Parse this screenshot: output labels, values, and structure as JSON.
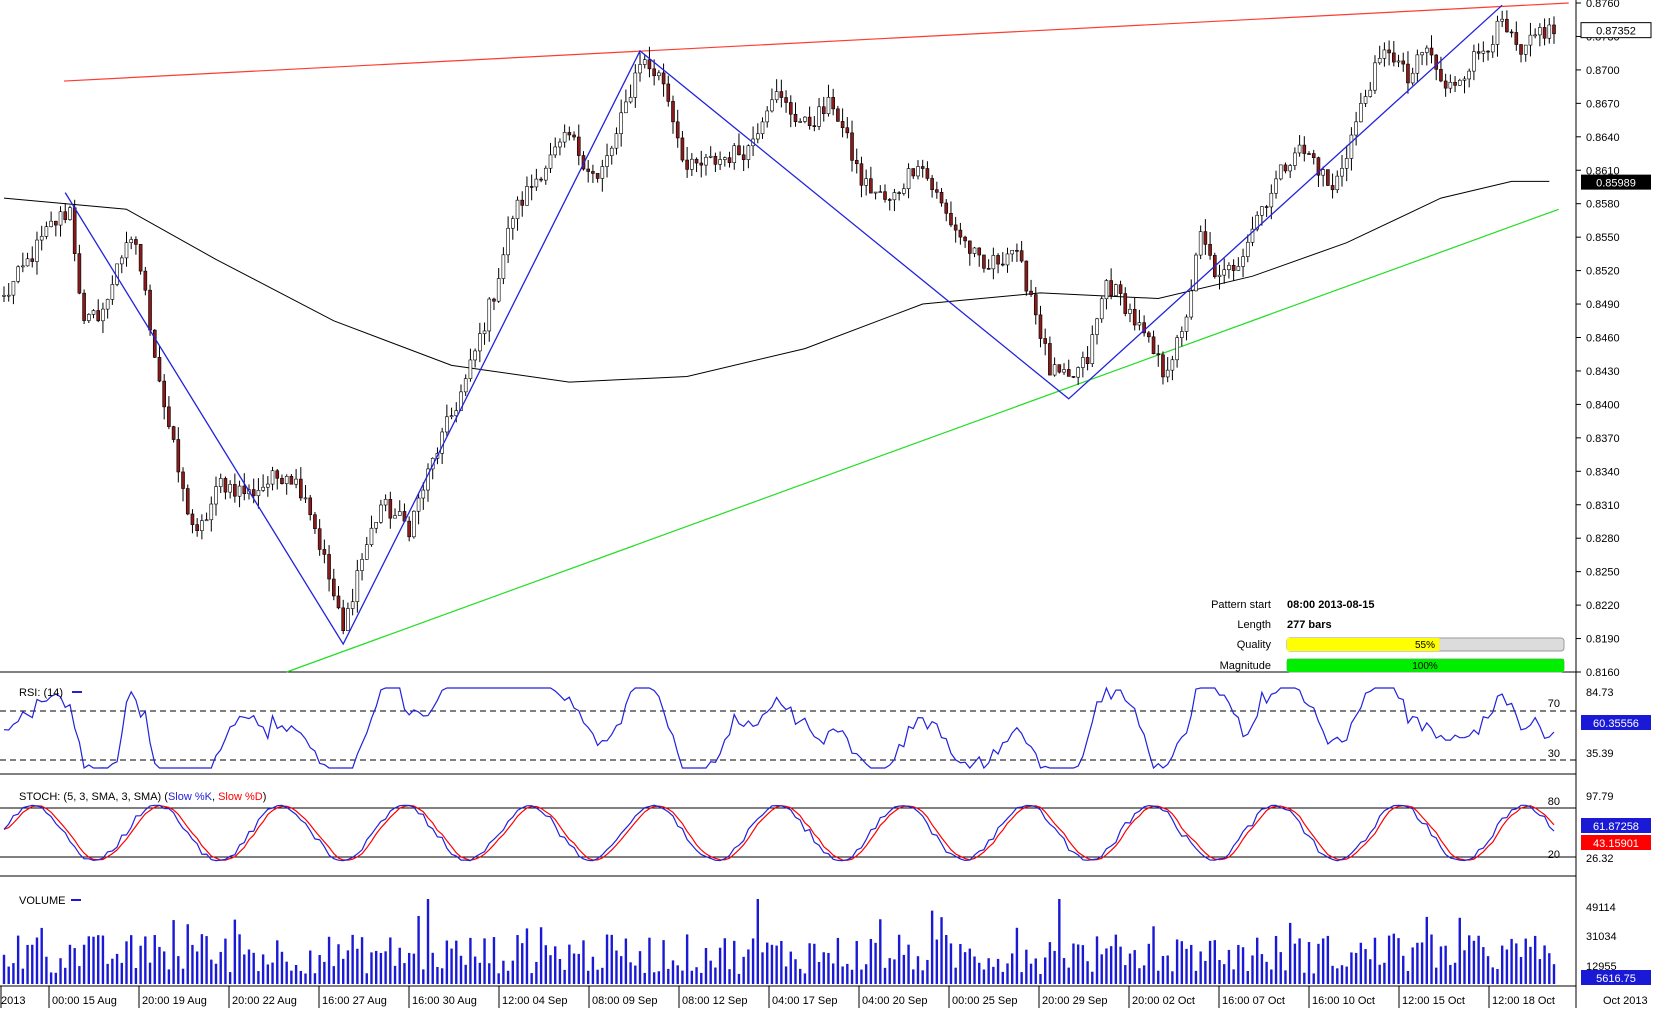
{
  "colors": {
    "bull_candle": "#ffffff",
    "bear_candle": "#8b1a1a",
    "wick": "#000000",
    "resistance": "#ff3b30",
    "support": "#22dd22",
    "pattern_line": "#2222dd",
    "ma": "#000000",
    "rsi": "#2222dd",
    "stoch_k": "#2222dd",
    "stoch_d": "#ff0000",
    "volume": "#1a1ad6",
    "badge_black": "#000000",
    "badge_blue": "#1a1ad6",
    "badge_red": "#ff0000",
    "quality_fill": "#ffff00",
    "magnitude_fill": "#00ee00"
  },
  "price_axis": {
    "ticks": [
      "0.8760",
      "0.8730",
      "0.8700",
      "0.8670",
      "0.8640",
      "0.8610",
      "0.8580",
      "0.8550",
      "0.8520",
      "0.8490",
      "0.8460",
      "0.8430",
      "0.8400",
      "0.8370",
      "0.8340",
      "0.8310",
      "0.8280",
      "0.8250",
      "0.8220",
      "0.8190",
      "0.8160"
    ],
    "last_price": "0.87352",
    "ma_value": "0.85989"
  },
  "time_axis": {
    "labels": [
      "2013",
      "00:00 15 Aug",
      "20:00 19 Aug",
      "20:00 22 Aug",
      "16:00 27 Aug",
      "16:00 30 Aug",
      "12:00 04 Sep",
      "08:00 09 Sep",
      "08:00 12 Sep",
      "04:00 17 Sep",
      "04:00 20 Sep",
      "00:00 25 Sep",
      "20:00 29 Sep",
      "20:00 02 Oct",
      "16:00 07 Oct",
      "16:00 10 Oct",
      "12:00 15 Oct",
      "12:00 18 Oct"
    ],
    "right_label": "Oct 2013"
  },
  "pattern_info": {
    "start_label": "Pattern start",
    "start_value": "08:00 2013-08-15",
    "length_label": "Length",
    "length_value": "277 bars",
    "quality_label": "Quality",
    "quality_value": "55%",
    "quality": 0.55,
    "magnitude_label": "Magnitude",
    "magnitude_value": "100%",
    "magnitude": 1.0
  },
  "rsi": {
    "label": "RSI: (14)",
    "levels": [
      "70",
      "30"
    ],
    "axis_top": "84.73",
    "axis_bottom": "35.39",
    "value": "60.35556"
  },
  "stoch": {
    "label_prefix": "STOCH: (5, 3, SMA, 3, SMA) (",
    "k_label": "Slow %K",
    "sep": ", ",
    "d_label": "Slow %D",
    "label_suffix": ")",
    "levels": [
      "80",
      "20"
    ],
    "axis_top": "97.79",
    "axis_bottom": "26.32",
    "k_value": "61.87258",
    "d_value": "43.15901"
  },
  "volume": {
    "label": "VOLUME",
    "ticks": [
      "49114",
      "31034",
      "12955"
    ],
    "value": "5616.75"
  },
  "chart_data": {
    "type": "candlestick",
    "instrument_axis": "price",
    "ylim": [
      0.816,
      0.876
    ],
    "x_count": 277,
    "price_path": [
      [
        0,
        0.8495
      ],
      [
        10,
        0.856
      ],
      [
        14,
        0.8575
      ],
      [
        17,
        0.847
      ],
      [
        22,
        0.849
      ],
      [
        24,
        0.853
      ],
      [
        28,
        0.8545
      ],
      [
        34,
        0.84
      ],
      [
        38,
        0.832
      ],
      [
        41,
        0.828
      ],
      [
        46,
        0.833
      ],
      [
        52,
        0.832
      ],
      [
        60,
        0.834
      ],
      [
        64,
        0.832
      ],
      [
        68,
        0.826
      ],
      [
        72,
        0.8195
      ],
      [
        75,
        0.825
      ],
      [
        80,
        0.831
      ],
      [
        86,
        0.829
      ],
      [
        92,
        0.836
      ],
      [
        98,
        0.842
      ],
      [
        104,
        0.85
      ],
      [
        108,
        0.857
      ],
      [
        114,
        0.861
      ],
      [
        120,
        0.864
      ],
      [
        126,
        0.86
      ],
      [
        130,
        0.864
      ],
      [
        135,
        0.871
      ],
      [
        140,
        0.869
      ],
      [
        145,
        0.861
      ],
      [
        152,
        0.862
      ],
      [
        158,
        0.863
      ],
      [
        163,
        0.868
      ],
      [
        170,
        0.865
      ],
      [
        176,
        0.867
      ],
      [
        182,
        0.86
      ],
      [
        188,
        0.858
      ],
      [
        194,
        0.862
      ],
      [
        200,
        0.857
      ],
      [
        208,
        0.852
      ],
      [
        214,
        0.854
      ],
      [
        218,
        0.85
      ],
      [
        222,
        0.843
      ],
      [
        226,
        0.842
      ],
      [
        230,
        0.844
      ],
      [
        234,
        0.851
      ],
      [
        238,
        0.849
      ],
      [
        242,
        0.846
      ],
      [
        246,
        0.843
      ],
      [
        250,
        0.846
      ],
      [
        254,
        0.855
      ],
      [
        258,
        0.851
      ],
      [
        262,
        0.853
      ],
      [
        266,
        0.857
      ],
      [
        270,
        0.86
      ],
      [
        274,
        0.863
      ],
      [
        278,
        0.862
      ],
      [
        282,
        0.859
      ],
      [
        286,
        0.864
      ],
      [
        290,
        0.869
      ],
      [
        294,
        0.872
      ],
      [
        298,
        0.869
      ],
      [
        302,
        0.872
      ],
      [
        306,
        0.868
      ],
      [
        310,
        0.87
      ],
      [
        314,
        0.872
      ],
      [
        318,
        0.874
      ],
      [
        322,
        0.871
      ],
      [
        326,
        0.8735
      ]
    ],
    "resistance_line": {
      "from": [
        0,
        0.869
      ],
      "to": [
        330,
        0.876
      ]
    },
    "support_line": {
      "from": [
        60,
        0.816
      ],
      "to": [
        330,
        0.8575
      ]
    },
    "pattern_zigzag": [
      [
        13,
        0.859
      ],
      [
        72,
        0.8185
      ],
      [
        135,
        0.8717
      ],
      [
        226,
        0.8405
      ],
      [
        318,
        0.8758
      ]
    ],
    "moving_average": [
      [
        0,
        0.8585
      ],
      [
        26,
        0.8575
      ],
      [
        45,
        0.853
      ],
      [
        70,
        0.8475
      ],
      [
        95,
        0.8435
      ],
      [
        120,
        0.842
      ],
      [
        145,
        0.8425
      ],
      [
        170,
        0.845
      ],
      [
        195,
        0.849
      ],
      [
        220,
        0.85
      ],
      [
        245,
        0.8495
      ],
      [
        265,
        0.8515
      ],
      [
        285,
        0.8545
      ],
      [
        305,
        0.8585
      ],
      [
        320,
        0.86
      ],
      [
        328,
        0.86
      ]
    ]
  }
}
